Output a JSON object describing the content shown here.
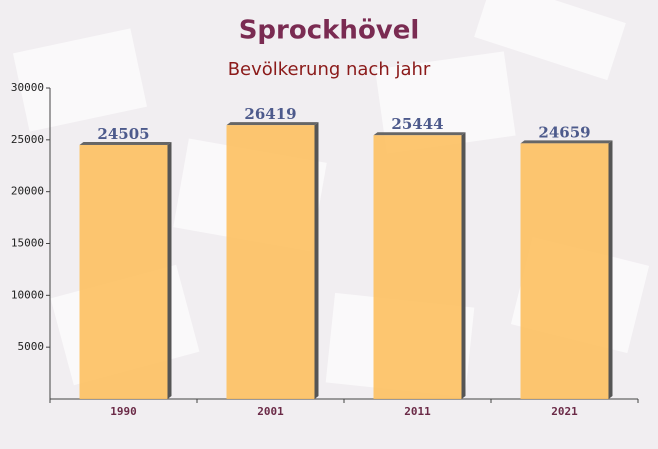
{
  "chart_data": {
    "type": "bar",
    "title": "Sprockhövel",
    "subtitle": "Bevölkerung nach jahr",
    "categories": [
      "1990",
      "2001",
      "2011",
      "2021"
    ],
    "values": [
      24505,
      26419,
      25444,
      24659
    ],
    "color": "#fdc060",
    "ylim": [
      0,
      30000
    ],
    "yticks": [
      5000,
      10000,
      15000,
      20000,
      25000,
      30000
    ],
    "grid": false
  }
}
